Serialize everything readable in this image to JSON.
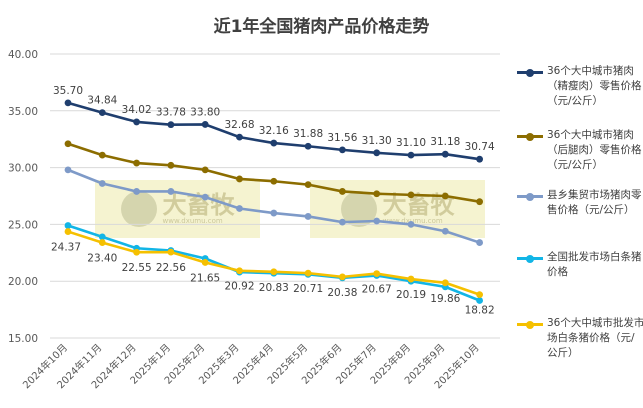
{
  "chart_data": {
    "type": "line",
    "title": "近1年全国猪肉产品价格走势",
    "categories": [
      "2024年10月",
      "2024年11月",
      "2024年12月",
      "2025年1月",
      "2025年2月",
      "2025年3月",
      "2025年4月",
      "2025年5月",
      "2025年6月",
      "2025年7月",
      "2025年8月",
      "2025年9月",
      "2025年10月"
    ],
    "ylim": [
      15,
      40
    ],
    "yticks": [
      "15.00",
      "20.00",
      "25.00",
      "30.00",
      "35.00",
      "40.00"
    ],
    "grid": true,
    "legend": "right",
    "series": [
      {
        "name": "36个大中城市猪肉（精瘦肉）零售价格（元/公斤）",
        "color": "#1F3E6E",
        "values": [
          35.7,
          34.84,
          34.02,
          33.78,
          33.8,
          32.68,
          32.16,
          31.88,
          31.56,
          31.3,
          31.1,
          31.18,
          30.74
        ],
        "labels": [
          "35.70",
          "34.84",
          "34.02",
          "33.78",
          "33.80",
          "32.68",
          "32.16",
          "31.88",
          "31.56",
          "31.30",
          "31.10",
          "31.18",
          "30.74"
        ]
      },
      {
        "name": "36个大中城市猪肉（后腿肉）零售价格（元/公斤）",
        "color": "#8C6D00",
        "values": [
          32.1,
          31.1,
          30.4,
          30.2,
          29.8,
          29.0,
          28.8,
          28.5,
          27.9,
          27.7,
          27.6,
          27.5,
          27.0
        ]
      },
      {
        "name": "县乡集贸市场猪肉零售价格（元/公斤）",
        "color": "#7E9AC8",
        "values": [
          29.8,
          28.6,
          27.9,
          27.9,
          27.4,
          26.4,
          26.0,
          25.7,
          25.2,
          25.3,
          25.0,
          24.4,
          23.4
        ]
      },
      {
        "name": "全国批发市场白条猪价格",
        "color": "#12B5E6",
        "values": [
          24.9,
          23.9,
          22.9,
          22.7,
          22.0,
          20.8,
          20.7,
          20.6,
          20.3,
          20.5,
          20.0,
          19.5,
          18.3
        ]
      },
      {
        "name": "36个大中城市批发市场白条猪价格（元/公斤）",
        "color": "#F5C000",
        "values": [
          24.37,
          23.4,
          22.55,
          22.56,
          21.65,
          20.92,
          20.83,
          20.71,
          20.38,
          20.67,
          20.19,
          19.86,
          18.82
        ],
        "labels": [
          "24.37",
          "23.40",
          "22.55",
          "22.56",
          "21.65",
          "20.92",
          "20.83",
          "20.71",
          "20.38",
          "20.67",
          "20.19",
          "19.86",
          "18.82"
        ]
      }
    ]
  },
  "watermark": {
    "text": "大畜牧",
    "url": "www.dxumu.com"
  },
  "legend_items": [
    {
      "label": "36个大中城市猪肉（精瘦肉）零售价格（元/公斤）"
    },
    {
      "label": "36个大中城市猪肉（后腿肉）零售价格（元/公斤）"
    },
    {
      "label": "县乡集贸市场猪肉零售价格（元/公斤）"
    },
    {
      "label": "全国批发市场白条猪价格"
    },
    {
      "label": "36个大中城市批发市场白条猪价格（元/公斤）"
    }
  ]
}
